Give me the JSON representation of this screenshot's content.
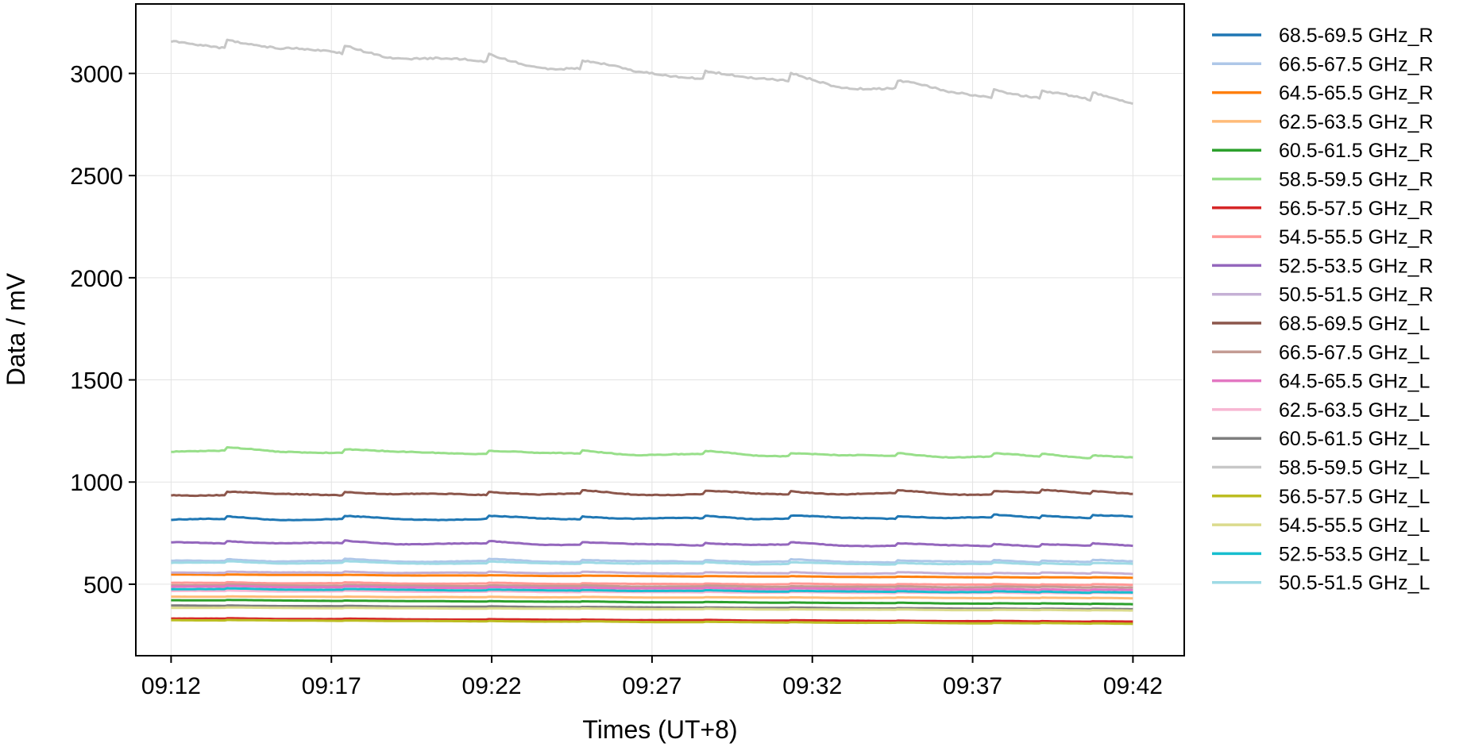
{
  "chart_data": {
    "type": "line",
    "title": "",
    "xlabel": "Times (UT+8)",
    "ylabel": "Data / mV",
    "x_ticks": [
      "09:12",
      "09:17",
      "09:22",
      "09:27",
      "09:32",
      "09:37",
      "09:42"
    ],
    "x_range_minutes": [
      -1.1,
      31.6
    ],
    "x_start": "09:12",
    "x_end": "09:42",
    "ylim": [
      150,
      3340
    ],
    "y_ticks": [
      500,
      1000,
      1500,
      2000,
      2500,
      3000
    ],
    "grid": true,
    "legend_position": "outside-right",
    "series": [
      {
        "name": "68.5-69.5 GHz_R",
        "color": "#1f77b4",
        "start": 822,
        "end": 832,
        "wiggle": 14
      },
      {
        "name": "66.5-67.5 GHz_R",
        "color": "#aec7e8",
        "start": 618,
        "end": 612,
        "wiggle": 10
      },
      {
        "name": "64.5-65.5 GHz_R",
        "color": "#ff7f0e",
        "start": 548,
        "end": 532,
        "wiggle": 2
      },
      {
        "name": "62.5-63.5 GHz_R",
        "color": "#ffbb78",
        "start": 440,
        "end": 432,
        "wiggle": 2
      },
      {
        "name": "60.5-61.5 GHz_R",
        "color": "#2ca02c",
        "start": 423,
        "end": 403,
        "wiggle": 2
      },
      {
        "name": "58.5-59.5 GHz_R",
        "color": "#98df8a",
        "start": 1160,
        "end": 1125,
        "wiggle": 16
      },
      {
        "name": "56.5-57.5 GHz_R",
        "color": "#d62728",
        "start": 333,
        "end": 317,
        "wiggle": 2
      },
      {
        "name": "54.5-55.5 GHz_R",
        "color": "#ff9896",
        "start": 508,
        "end": 497,
        "wiggle": 4
      },
      {
        "name": "52.5-53.5 GHz_R",
        "color": "#9467bd",
        "start": 708,
        "end": 690,
        "wiggle": 12
      },
      {
        "name": "50.5-51.5 GHz_R",
        "color": "#c5b0d5",
        "start": 560,
        "end": 553,
        "wiggle": 6
      },
      {
        "name": "68.5-69.5 GHz_L",
        "color": "#8c564b",
        "start": 945,
        "end": 950,
        "wiggle": 16
      },
      {
        "name": "66.5-67.5 GHz_L",
        "color": "#c49c94",
        "start": 497,
        "end": 485,
        "wiggle": 4
      },
      {
        "name": "64.5-65.5 GHz_L",
        "color": "#e377c2",
        "start": 490,
        "end": 472,
        "wiggle": 4
      },
      {
        "name": "62.5-63.5 GHz_L",
        "color": "#f7b6d2",
        "start": 468,
        "end": 456,
        "wiggle": 3
      },
      {
        "name": "60.5-61.5 GHz_L",
        "color": "#7f7f7f",
        "start": 396,
        "end": 378,
        "wiggle": 2
      },
      {
        "name": "58.5-59.5 GHz_L",
        "color": "#c7c7c7",
        "start": 3170,
        "end": 2865,
        "wiggle": 40
      },
      {
        "name": "56.5-57.5 GHz_L",
        "color": "#bcbd22",
        "start": 325,
        "end": 307,
        "wiggle": 2
      },
      {
        "name": "54.5-55.5 GHz_L",
        "color": "#dbdb8d",
        "start": 386,
        "end": 372,
        "wiggle": 2
      },
      {
        "name": "52.5-53.5 GHz_L",
        "color": "#17becf",
        "start": 478,
        "end": 460,
        "wiggle": 4
      },
      {
        "name": "50.5-51.5 GHz_L",
        "color": "#9edae5",
        "start": 608,
        "end": 600,
        "wiggle": 8
      }
    ]
  }
}
